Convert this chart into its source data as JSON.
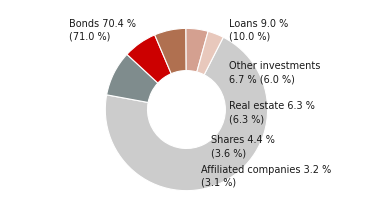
{
  "slices": [
    {
      "label": "Bonds 70.4 %\n(71.0 %)",
      "value": 70.4,
      "color": "#cccccc"
    },
    {
      "label": "Loans 9.0 %\n(10.0 %)",
      "value": 9.0,
      "color": "#7f8c8d"
    },
    {
      "label": "Other investments\n6.7 % (6.0 %)",
      "value": 6.7,
      "color": "#cc0000"
    },
    {
      "label": "Real estate 6.3 %\n(6.3 %)",
      "value": 6.3,
      "color": "#b07050"
    },
    {
      "label": "Shares 4.4 %\n(3.6 %)",
      "value": 4.4,
      "color": "#d4a090"
    },
    {
      "label": "Affiliated companies 3.2 %\n(3.1 %)",
      "value": 3.2,
      "color": "#e8c8bc"
    }
  ],
  "label_fontsize": 7.0,
  "label_color": "#1a1a1a",
  "background_color": "#ffffff",
  "wedge_edge_color": "#ffffff",
  "wedge_linewidth": 0.8,
  "donut_width": 0.52,
  "start_angle": 63
}
